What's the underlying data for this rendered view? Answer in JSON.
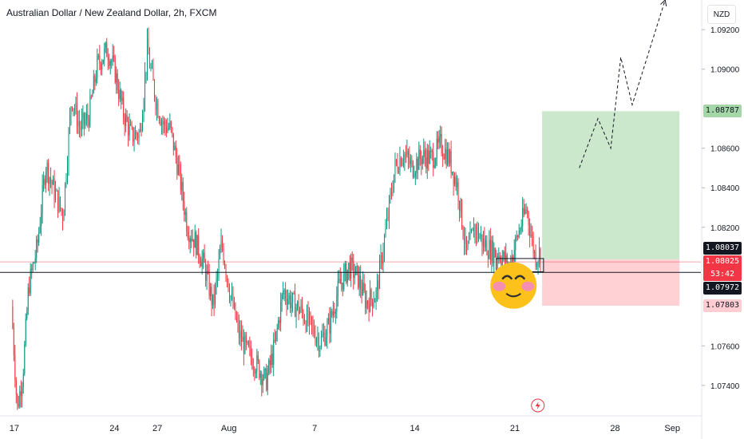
{
  "header": {
    "title": "Australian Dollar / New Zealand Dollar, 2h, FXCM",
    "currency_button": "NZD"
  },
  "chart_data": {
    "type": "candlestick",
    "symbol": "AUDNZD",
    "interval": "2h",
    "ylim": [
      1.0725,
      1.0935
    ],
    "y_ticks": [
      "1.09200",
      "1.09000",
      "1.08600",
      "1.08400",
      "1.08200",
      "1.07600",
      "1.07400"
    ],
    "x_ticks": [
      {
        "label": "17",
        "day": 17
      },
      {
        "label": "24",
        "day": 24
      },
      {
        "label": "27",
        "day": 27
      },
      {
        "label": "Aug",
        "day": 32
      },
      {
        "label": "7",
        "day": 38
      },
      {
        "label": "14",
        "day": 45
      },
      {
        "label": "21",
        "day": 52
      },
      {
        "label": "28",
        "day": 59
      },
      {
        "label": "Sep",
        "day": 63
      }
    ],
    "price_path": [
      [
        16.8,
        1.078
      ],
      [
        17.2,
        1.0728
      ],
      [
        17.6,
        1.0746
      ],
      [
        18.0,
        1.079
      ],
      [
        18.6,
        1.081
      ],
      [
        19.2,
        1.0852
      ],
      [
        19.8,
        1.0838
      ],
      [
        20.4,
        1.0826
      ],
      [
        21.0,
        1.0886
      ],
      [
        21.6,
        1.087
      ],
      [
        22.2,
        1.0876
      ],
      [
        22.8,
        1.0902
      ],
      [
        23.5,
        1.091
      ],
      [
        24.0,
        1.09
      ],
      [
        24.6,
        1.0878
      ],
      [
        25.2,
        1.0866
      ],
      [
        25.8,
        1.0868
      ],
      [
        26.3,
        1.091
      ],
      [
        26.9,
        1.0884
      ],
      [
        27.4,
        1.0872
      ],
      [
        27.9,
        1.087
      ],
      [
        28.5,
        1.0848
      ],
      [
        29.1,
        1.082
      ],
      [
        29.7,
        1.0812
      ],
      [
        30.3,
        1.08
      ],
      [
        30.9,
        1.078
      ],
      [
        31.5,
        1.0812
      ],
      [
        32.1,
        1.0786
      ],
      [
        32.7,
        1.0766
      ],
      [
        33.3,
        1.0757
      ],
      [
        34.0,
        1.075
      ],
      [
        34.6,
        1.0742
      ],
      [
        35.2,
        1.076
      ],
      [
        35.8,
        1.0788
      ],
      [
        36.4,
        1.0782
      ],
      [
        37.0,
        1.0778
      ],
      [
        37.7,
        1.077
      ],
      [
        38.4,
        1.0762
      ],
      [
        39.0,
        1.077
      ],
      [
        39.7,
        1.079
      ],
      [
        40.4,
        1.08
      ],
      [
        41.0,
        1.0795
      ],
      [
        41.6,
        1.0782
      ],
      [
        42.3,
        1.0786
      ],
      [
        43.0,
        1.082
      ],
      [
        43.6,
        1.085
      ],
      [
        44.2,
        1.0858
      ],
      [
        44.8,
        1.085
      ],
      [
        45.5,
        1.0856
      ],
      [
        46.2,
        1.0855
      ],
      [
        46.8,
        1.0862
      ],
      [
        47.4,
        1.0855
      ],
      [
        48.0,
        1.084
      ],
      [
        48.6,
        1.0806
      ],
      [
        49.2,
        1.082
      ],
      [
        49.8,
        1.0812
      ],
      [
        50.4,
        1.0808
      ],
      [
        51.0,
        1.0806
      ],
      [
        51.6,
        1.08
      ],
      [
        52.2,
        1.0816
      ],
      [
        52.8,
        1.083
      ],
      [
        53.4,
        1.0805
      ],
      [
        53.8,
        1.0807
      ]
    ],
    "current_price": "1.08025",
    "countdown": "53:42",
    "price_labels": {
      "take_profit": "1.08787",
      "entry": "1.08037",
      "support": "1.07972",
      "stop_loss": "1.07803"
    },
    "levels": {
      "take_profit": 1.08787,
      "entry": 1.08037,
      "current": 1.08025,
      "support": 1.07972,
      "stop_loss": 1.07803
    },
    "position": {
      "side": "long",
      "start_day": 53.9,
      "end_day": 63.5
    },
    "support_box": {
      "start_day": 50.7,
      "end_day": 54.0,
      "top": 1.08042,
      "bottom": 1.07975
    },
    "projection_path": [
      [
        56.5,
        1.085
      ],
      [
        57.8,
        1.0875
      ],
      [
        58.7,
        1.086
      ],
      [
        59.4,
        1.0906
      ],
      [
        60.2,
        1.0882
      ],
      [
        62.5,
        1.0935
      ]
    ],
    "colors": {
      "up": "#089981",
      "down": "#f23645",
      "profit_zone": "#c8e6c9",
      "loss_zone": "#ffcdd2",
      "take_profit_badge": "#a5d6a7",
      "stop_loss_badge": "#ffcdd2",
      "current_badge": "#f23645",
      "support_badge": "#131722",
      "line": "#131722"
    },
    "icons": [
      "smiling-blushing-emoji",
      "lightning-icon"
    ]
  }
}
